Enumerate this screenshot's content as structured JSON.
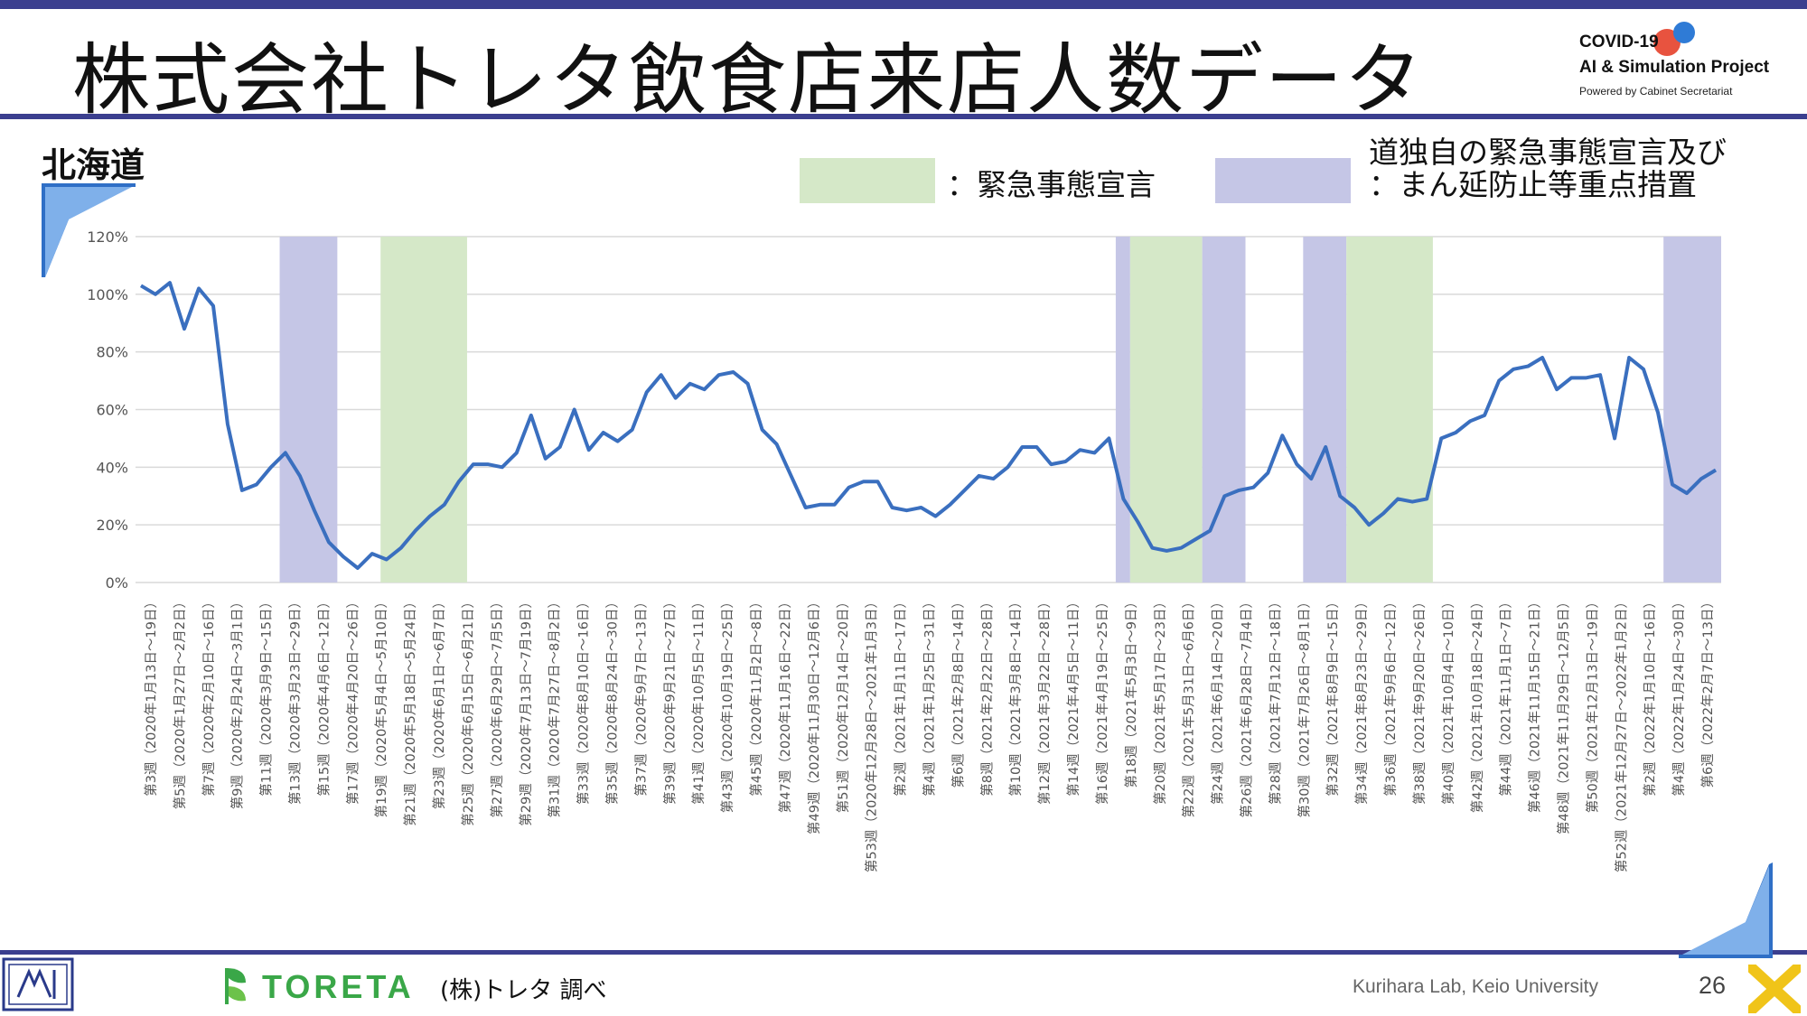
{
  "header": {
    "title": "株式会社トレタ飲食店来店人数データ",
    "logo_line1": "COVID-19",
    "logo_line2": "AI & Simulation Project",
    "logo_line3": "Powered by Cabinet Secretariat"
  },
  "region": "北海道",
  "legend": {
    "emergency_label": "：緊急事態宣言",
    "priority_label_line1": "道独自の緊急事態宣言及び",
    "priority_label_line2": "：まん延防止等重点措置",
    "emergency_color": "#d5e8c8",
    "priority_color": "#c5c6e6"
  },
  "footer": {
    "source": "(株)トレタ 調べ",
    "brand": "TORETA",
    "lab": "Kurihara Lab, Keio University",
    "page": "26"
  },
  "colors": {
    "accent": "#3b3f8f",
    "line": "#3a6fbf",
    "toreta_green": "#3aa748"
  },
  "chart_data": {
    "type": "line",
    "ylim": [
      0,
      120
    ],
    "yticks": [
      "0%",
      "20%",
      "40%",
      "60%",
      "80%",
      "100%",
      "120%"
    ],
    "xlabels": [
      "第3週（2020年1月13日～19日）",
      "第5週（2020年1月27日～2月2日）",
      "第7週（2020年2月10日～16日）",
      "第9週（2020年2月24日～3月1日）",
      "第11週（2020年3月9日～15日）",
      "第13週（2020年3月23日～29日）",
      "第15週（2020年4月6日～12日）",
      "第17週（2020年4月20日～26日）",
      "第19週（2020年5月4日～5月10日）",
      "第21週（2020年5月18日～5月24日）",
      "第23週（2020年6月1日～6月7日）",
      "第25週（2020年6月15日～6月21日）",
      "第27週（2020年6月29日～7月5日）",
      "第29週（2020年7月13日～7月19日）",
      "第31週（2020年7月27日～8月2日）",
      "第33週（2020年8月10日～16日）",
      "第35週（2020年8月24日～30日）",
      "第37週（2020年9月7日～13日）",
      "第39週（2020年9月21日～27日）",
      "第41週（2020年10月5日～11日）",
      "第43週（2020年10月19日～25日）",
      "第45週（2020年11月2日～8日）",
      "第47週（2020年11月16日～22日）",
      "第49週（2020年11月30日～12月6日）",
      "第51週（2020年12月14日～20日）",
      "第53週（2020年12月28日～2021年1月3日）",
      "第2週（2021年1月11日～17日）",
      "第4週（2021年1月25日～31日）",
      "第6週（2021年2月8日～14日）",
      "第8週（2021年2月22日～28日）",
      "第10週（2021年3月8日～14日）",
      "第12週（2021年3月22日～28日）",
      "第14週（2021年4月5日～11日）",
      "第16週（2021年4月19日～25日）",
      "第18週（2021年5月3日～9日）",
      "第20週（2021年5月17日～23日）",
      "第22週（2021年5月31日～6月6日）",
      "第24週（2021年6月14日～20日）",
      "第26週（2021年6月28日～7月4日）",
      "第28週（2021年7月12日～18日）",
      "第30週（2021年7月26日～8月1日）",
      "第32週（2021年8月9日～15日）",
      "第34週（2021年8月23日～29日）",
      "第36週（2021年9月6日～12日）",
      "第38週（2021年9月20日～26日）",
      "第40週（2021年10月4日～10日）",
      "第42週（2021年10月18日～24日）",
      "第44週（2021年11月1日～7日）",
      "第46週（2021年11月15日～21日）",
      "第48週（2021年11月29日～12月5日）",
      "第50週（2021年12月13日～19日）",
      "第52週（2021年12月27日～2022年1月2日）",
      "第2週（2022年1月10日～16日）",
      "第4週（2022年1月24日～30日）",
      "第6週（2022年2月7日～13日）"
    ],
    "values": [
      103,
      100,
      104,
      88,
      102,
      96,
      55,
      32,
      34,
      40,
      45,
      37,
      25,
      14,
      9,
      5,
      10,
      8,
      12,
      18,
      23,
      27,
      35,
      41,
      41,
      40,
      45,
      58,
      43,
      47,
      60,
      46,
      52,
      49,
      53,
      66,
      72,
      64,
      69,
      67,
      72,
      73,
      69,
      53,
      48,
      37,
      26,
      27,
      27,
      33,
      35,
      35,
      26,
      25,
      26,
      23,
      27,
      32,
      37,
      36,
      40,
      47,
      47,
      41,
      42,
      46,
      45,
      50,
      29,
      21,
      12,
      11,
      12,
      15,
      18,
      30,
      32,
      33,
      38,
      51,
      41,
      36,
      47,
      30,
      26,
      20,
      24,
      29,
      28,
      29,
      50,
      52,
      56,
      58,
      70,
      74,
      75,
      78,
      67,
      71,
      71,
      72,
      50,
      78,
      74,
      59,
      34,
      31,
      36,
      39
    ],
    "shaded_periods": [
      {
        "type": "priority",
        "start": 5,
        "end": 7
      },
      {
        "type": "emergency",
        "start": 8.5,
        "end": 11.5
      },
      {
        "type": "priority",
        "start": 34,
        "end": 34.5
      },
      {
        "type": "emergency",
        "start": 34.5,
        "end": 37
      },
      {
        "type": "priority",
        "start": 37,
        "end": 38.5
      },
      {
        "type": "priority",
        "start": 40.5,
        "end": 42
      },
      {
        "type": "emergency",
        "start": 42,
        "end": 45
      },
      {
        "type": "priority",
        "start": 53,
        "end": 55
      }
    ]
  }
}
